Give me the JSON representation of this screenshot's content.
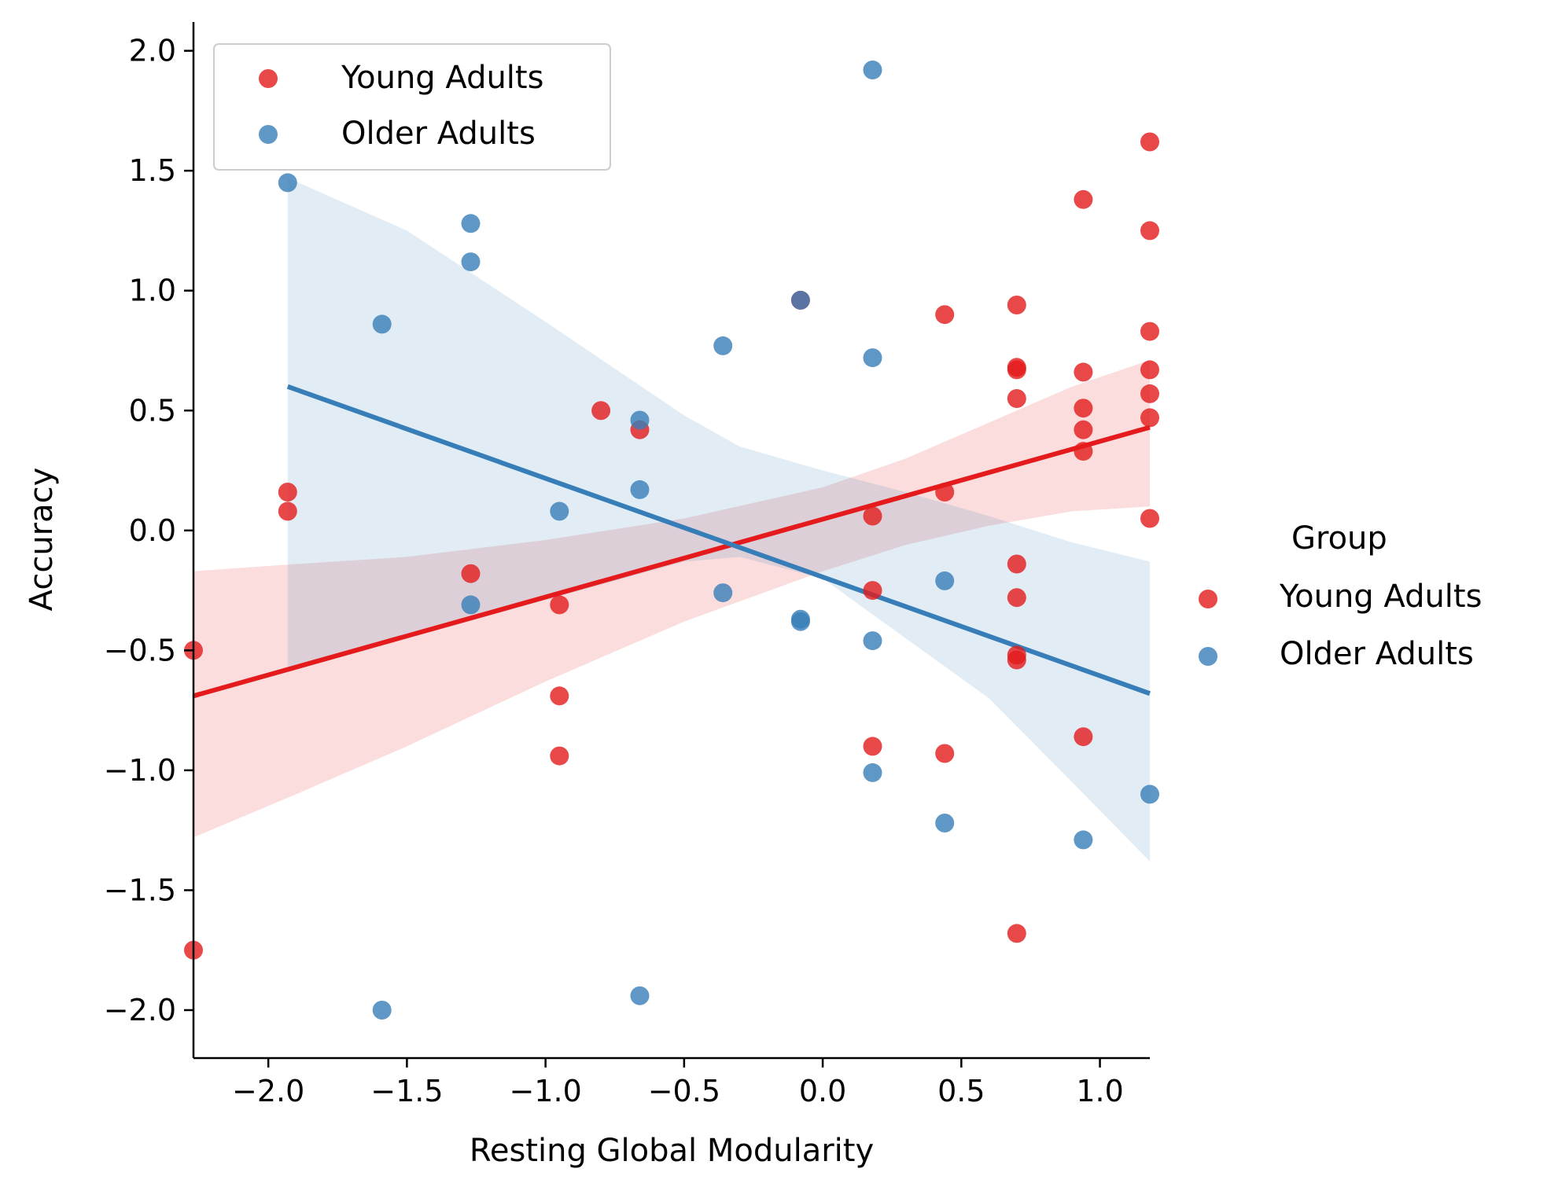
{
  "chart_data": {
    "type": "scatter",
    "title": "",
    "xlabel": "Resting Global Modularity",
    "ylabel": "Accuracy",
    "xlim": [
      -2.27,
      1.18
    ],
    "ylim": [
      -2.2,
      2.12
    ],
    "xticks": [
      -2.0,
      -1.5,
      -1.0,
      -0.5,
      0.0,
      0.5,
      1.0
    ],
    "yticks": [
      -2.0,
      -1.5,
      -1.0,
      -0.5,
      0.0,
      0.5,
      1.0,
      1.5,
      2.0
    ],
    "xtick_labels": [
      "−2.0",
      "−1.5",
      "−1.0",
      "−0.5",
      "0.0",
      "0.5",
      "1.0"
    ],
    "ytick_labels": [
      "−2.0",
      "−1.5",
      "−1.0",
      "−0.5",
      "0.0",
      "0.5",
      "1.0",
      "1.5",
      "2.0"
    ],
    "grid": false,
    "legend_inside": {
      "placement": "upper-left",
      "entries": [
        "Young Adults",
        "Older Adults"
      ]
    },
    "legend_outside": {
      "placement": "right",
      "title": "Group",
      "entries": [
        "Young Adults",
        "Older Adults"
      ]
    },
    "series": [
      {
        "name": "Young Adults",
        "color": "#e41a1c",
        "points": [
          [
            -2.27,
            -0.5
          ],
          [
            -2.27,
            -1.75
          ],
          [
            -1.93,
            0.16
          ],
          [
            -1.93,
            0.08
          ],
          [
            -1.27,
            -0.18
          ],
          [
            -0.95,
            -0.31
          ],
          [
            -0.95,
            -0.69
          ],
          [
            -0.95,
            -0.94
          ],
          [
            -0.8,
            0.5
          ],
          [
            -0.66,
            0.42
          ],
          [
            -0.08,
            0.96
          ],
          [
            0.18,
            0.06
          ],
          [
            0.18,
            -0.25
          ],
          [
            0.18,
            -0.9
          ],
          [
            0.44,
            0.9
          ],
          [
            0.44,
            0.16
          ],
          [
            0.44,
            -0.93
          ],
          [
            0.7,
            0.94
          ],
          [
            0.7,
            0.68
          ],
          [
            0.7,
            0.67
          ],
          [
            0.7,
            0.55
          ],
          [
            0.7,
            -0.14
          ],
          [
            0.7,
            -0.28
          ],
          [
            0.7,
            -0.52
          ],
          [
            0.7,
            -0.54
          ],
          [
            0.7,
            -1.68
          ],
          [
            0.94,
            1.38
          ],
          [
            0.94,
            0.66
          ],
          [
            0.94,
            0.51
          ],
          [
            0.94,
            0.42
          ],
          [
            0.94,
            0.33
          ],
          [
            0.94,
            -0.86
          ],
          [
            1.18,
            1.62
          ],
          [
            1.18,
            1.25
          ],
          [
            1.18,
            0.83
          ],
          [
            1.18,
            0.67
          ],
          [
            1.18,
            0.57
          ],
          [
            1.18,
            0.47
          ],
          [
            1.18,
            0.05
          ]
        ],
        "fit": {
          "x": [
            -2.27,
            1.18
          ],
          "y": [
            -0.69,
            0.43
          ]
        },
        "ci": {
          "x": [
            -2.27,
            -1.9,
            -1.5,
            -1.0,
            -0.5,
            0.0,
            0.3,
            0.6,
            0.9,
            1.18
          ],
          "upper": [
            -0.17,
            -0.14,
            -0.11,
            -0.04,
            0.05,
            0.18,
            0.3,
            0.45,
            0.6,
            0.71
          ],
          "lower": [
            -1.28,
            -1.1,
            -0.9,
            -0.63,
            -0.38,
            -0.17,
            -0.06,
            0.02,
            0.08,
            0.1
          ]
        }
      },
      {
        "name": "Older Adults",
        "color": "#377eb8",
        "points": [
          [
            -1.93,
            1.45
          ],
          [
            -1.59,
            0.86
          ],
          [
            -1.59,
            -2.0
          ],
          [
            -1.27,
            1.28
          ],
          [
            -1.27,
            1.12
          ],
          [
            -1.27,
            -0.31
          ],
          [
            -0.95,
            0.08
          ],
          [
            -0.66,
            0.46
          ],
          [
            -0.66,
            0.17
          ],
          [
            -0.66,
            -1.94
          ],
          [
            -0.36,
            0.77
          ],
          [
            -0.36,
            -0.26
          ],
          [
            -0.08,
            0.96
          ],
          [
            -0.08,
            -0.37
          ],
          [
            -0.08,
            -0.38
          ],
          [
            0.18,
            1.92
          ],
          [
            0.18,
            0.72
          ],
          [
            0.18,
            -0.46
          ],
          [
            0.18,
            -1.01
          ],
          [
            0.44,
            -0.21
          ],
          [
            0.44,
            -1.22
          ],
          [
            0.94,
            -1.29
          ],
          [
            1.18,
            -1.1
          ]
        ],
        "fit": {
          "x": [
            -1.93,
            1.18
          ],
          "y": [
            0.6,
            -0.68
          ]
        },
        "ci": {
          "x": [
            -1.93,
            -1.5,
            -1.0,
            -0.5,
            -0.3,
            0.0,
            0.3,
            0.6,
            0.9,
            1.18
          ],
          "upper": [
            1.47,
            1.25,
            0.87,
            0.48,
            0.35,
            0.25,
            0.16,
            0.06,
            -0.05,
            -0.13
          ],
          "lower": [
            -0.59,
            -0.45,
            -0.29,
            -0.13,
            -0.11,
            -0.2,
            -0.45,
            -0.7,
            -1.05,
            -1.38
          ]
        }
      }
    ]
  }
}
